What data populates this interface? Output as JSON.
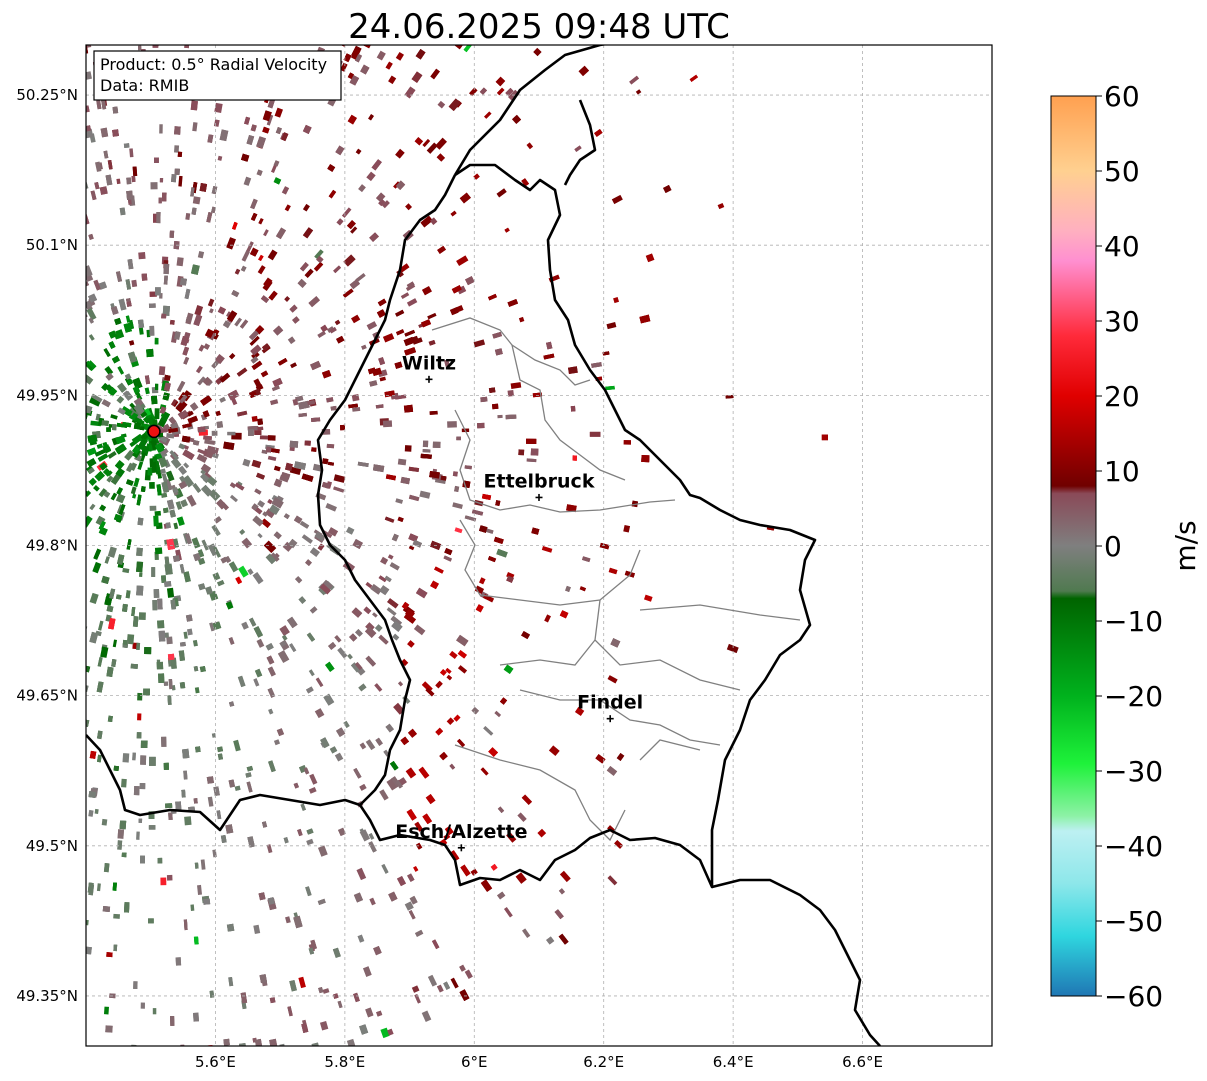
{
  "title": "24.06.2025 09:48 UTC",
  "info_box": {
    "product": "Product: 0.5° Radial Velocity",
    "data": "Data: RMIB"
  },
  "map": {
    "lon_range": [
      5.4,
      6.8
    ],
    "lat_range": [
      49.3,
      50.3
    ],
    "lon_ticks": [
      {
        "value": 5.6,
        "label": "5.6°E"
      },
      {
        "value": 5.8,
        "label": "5.8°E"
      },
      {
        "value": 6.0,
        "label": "6°E"
      },
      {
        "value": 6.2,
        "label": "6.2°E"
      },
      {
        "value": 6.4,
        "label": "6.4°E"
      },
      {
        "value": 6.6,
        "label": "6.6°E"
      }
    ],
    "lat_ticks": [
      {
        "value": 50.25,
        "label": "50.25°N"
      },
      {
        "value": 50.1,
        "label": "50.1°N"
      },
      {
        "value": 49.95,
        "label": "49.95°N"
      },
      {
        "value": 49.8,
        "label": "49.8°N"
      },
      {
        "value": 49.65,
        "label": "49.65°N"
      },
      {
        "value": 49.5,
        "label": "49.5°N"
      },
      {
        "value": 49.35,
        "label": "49.35°N"
      }
    ],
    "gridlines": true,
    "radar_site": {
      "lon": 5.505,
      "lat": 49.914
    },
    "cities": [
      {
        "name": "Wiltz",
        "lon": 5.93,
        "lat": 49.966
      },
      {
        "name": "Ettelbruck",
        "lon": 6.1,
        "lat": 49.848
      },
      {
        "name": "Findel",
        "lon": 6.21,
        "lat": 49.627
      },
      {
        "name": "Esch/Alzette",
        "lon": 5.98,
        "lat": 49.498
      }
    ]
  },
  "colorbar": {
    "label": "m/s",
    "min": -60,
    "max": 60,
    "ticks": [
      {
        "value": 60,
        "label": "60"
      },
      {
        "value": 50,
        "label": "50"
      },
      {
        "value": 40,
        "label": "40"
      },
      {
        "value": 30,
        "label": "30"
      },
      {
        "value": 20,
        "label": "20"
      },
      {
        "value": 10,
        "label": "10"
      },
      {
        "value": 0,
        "label": "0"
      },
      {
        "value": -10,
        "label": "−10"
      },
      {
        "value": -20,
        "label": "−20"
      },
      {
        "value": -30,
        "label": "−30"
      },
      {
        "value": -40,
        "label": "−40"
      },
      {
        "value": -50,
        "label": "−50"
      },
      {
        "value": -60,
        "label": "−60"
      }
    ],
    "color_stops": [
      {
        "v": -60,
        "c": "#1f77b4"
      },
      {
        "v": -52,
        "c": "#2fd6df"
      },
      {
        "v": -45,
        "c": "#8de7ea"
      },
      {
        "v": -38,
        "c": "#bdf0f2"
      },
      {
        "v": -36,
        "c": "#8df2a6"
      },
      {
        "v": -29,
        "c": "#1ef23a"
      },
      {
        "v": -20,
        "c": "#00b21d"
      },
      {
        "v": -7,
        "c": "#006400"
      },
      {
        "v": -6,
        "c": "#507a50"
      },
      {
        "v": 0,
        "c": "#7f7f7f"
      },
      {
        "v": 7,
        "c": "#8a4a58"
      },
      {
        "v": 8,
        "c": "#700000"
      },
      {
        "v": 20,
        "c": "#e00000"
      },
      {
        "v": 28,
        "c": "#ff2a3a"
      },
      {
        "v": 38,
        "c": "#ff8fd0"
      },
      {
        "v": 42,
        "c": "#ffb0c0"
      },
      {
        "v": 50,
        "c": "#ffd090"
      },
      {
        "v": 60,
        "c": "#ffa050"
      }
    ]
  }
}
